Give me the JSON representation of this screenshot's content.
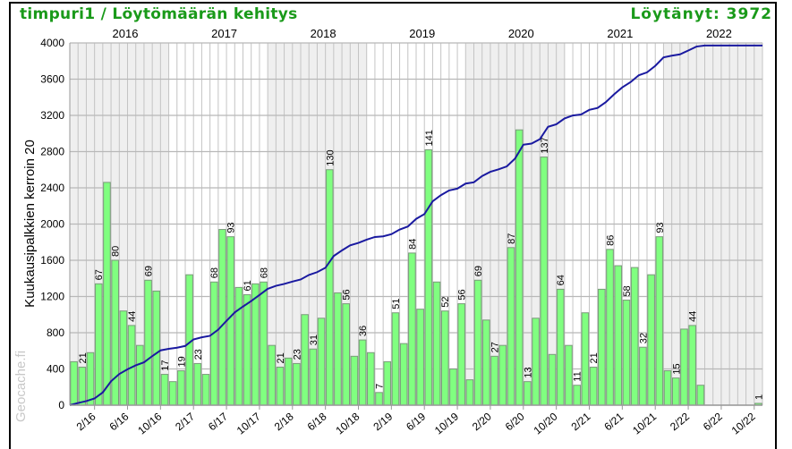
{
  "header": {
    "title": "timpuri1 / Löytömäärän kehitys",
    "total_found": "Löytänyt: 3972"
  },
  "watermark": "Geocache.fi",
  "chart_data": {
    "type": "bar",
    "title": "timpuri1 / Löytömäärän kehitys",
    "ylabel": "Kuukausipalkkien kerroin 20",
    "bar_multiplier": 20,
    "ylim": [
      0,
      4000
    ],
    "yticks": [
      0,
      400,
      800,
      1200,
      1600,
      2000,
      2400,
      2800,
      3200,
      3600,
      4000
    ],
    "year_labels": [
      "2016",
      "2017",
      "2018",
      "2019",
      "2020",
      "2021",
      "2022"
    ],
    "xtick_labels": [
      "2/16",
      "6/16",
      "10/16",
      "2/17",
      "6/17",
      "10/17",
      "2/18",
      "6/18",
      "10/18",
      "2/19",
      "6/19",
      "10/19",
      "2/20",
      "6/20",
      "10/20",
      "2/21",
      "6/21",
      "10/21",
      "2/22",
      "6/22",
      "10/22"
    ],
    "grid": true,
    "colors": {
      "bar": "#80ff80",
      "bar_edge": "#7a9a7a",
      "line": "#1a1aa0",
      "title": "#1a9a1a",
      "shade": "#efefef"
    },
    "series": [
      {
        "type": "bar",
        "description_hidden": true,
        "values": [
          24,
          21,
          29,
          67,
          123,
          80,
          52,
          44,
          33,
          69,
          63,
          17,
          13,
          19,
          72,
          23,
          17,
          68,
          97,
          93,
          65,
          61,
          67,
          68,
          33,
          21,
          26,
          23,
          50,
          31,
          48,
          130,
          62,
          56,
          27,
          36,
          29,
          7,
          24,
          51,
          34,
          84,
          53,
          141,
          68,
          52,
          20,
          56,
          14,
          69,
          47,
          27,
          33,
          87,
          152,
          13,
          48,
          137,
          28,
          64,
          33,
          11,
          51,
          21,
          64,
          86,
          77,
          58,
          76,
          32,
          72,
          93,
          19,
          15,
          42,
          44,
          11,
          0,
          0,
          0,
          0,
          0,
          0,
          1
        ],
        "labeled": [
          1,
          3,
          5,
          7,
          9,
          11,
          13,
          15,
          17,
          19,
          21,
          23,
          25,
          27,
          29,
          31,
          33,
          35,
          37,
          39,
          41,
          43,
          45,
          47,
          49,
          51,
          53,
          55,
          57,
          59,
          61,
          63,
          65,
          67,
          69,
          71,
          73,
          75,
          83
        ]
      },
      {
        "type": "line",
        "cumulative": true
      }
    ]
  }
}
